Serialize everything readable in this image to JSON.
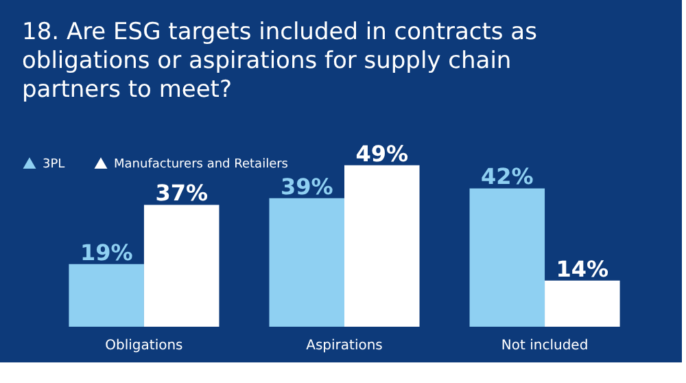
{
  "chart_data": {
    "type": "bar",
    "title": "18. Are ESG targets included in contracts as obligations or aspirations for supply chain partners to meet?",
    "categories": [
      "Obligations",
      "Aspirations",
      "Not included"
    ],
    "series": [
      {
        "name": "3PL",
        "color": "#8fd0f2",
        "values": [
          19,
          39,
          42
        ],
        "value_labels": [
          "19%",
          "39%",
          "42%"
        ]
      },
      {
        "name": "Manufacturers and Retailers",
        "color": "#ffffff",
        "values": [
          37,
          49,
          14
        ],
        "value_labels": [
          "37%",
          "49%",
          "14%"
        ]
      }
    ],
    "legend": "top left",
    "tick_labels": "x",
    "grid": false
  }
}
